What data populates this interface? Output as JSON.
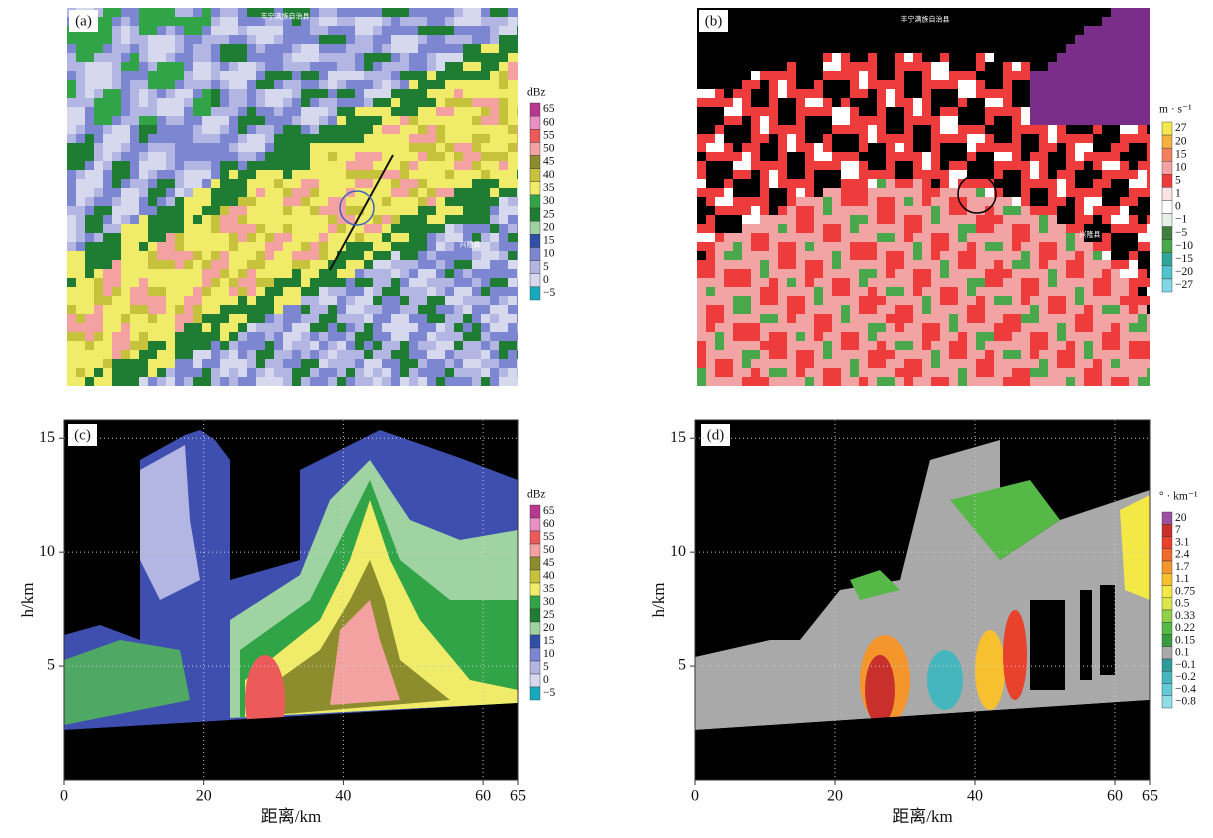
{
  "panels": [
    {
      "label": "(a)",
      "place_names": [
        "丰宁满族自治县",
        "兴隆县"
      ],
      "colorbar": {
        "title": "dBz",
        "labels": [
          "65",
          "60",
          "55",
          "50",
          "45",
          "40",
          "35",
          "30",
          "25",
          "20",
          "15",
          "10",
          "5",
          "0",
          "−5"
        ],
        "colors": [
          "#b8388f",
          "#e98fc4",
          "#ec5a5a",
          "#f4a1a1",
          "#8d8d2e",
          "#c7c23c",
          "#f0ec6a",
          "#32a448",
          "#1f7c33",
          "#9fd3a2",
          "#2f4fa8",
          "#7d86d0",
          "#b3b6e2",
          "#d6d8ee",
          "#16aac0"
        ]
      }
    },
    {
      "label": "(b)",
      "place_names": [
        "丰宁满族自治县",
        "兴隆县"
      ],
      "colorbar": {
        "title": "m · s⁻¹",
        "labels": [
          "27",
          "20",
          "15",
          "10",
          "5",
          "1",
          "0",
          "−1",
          "−5",
          "−10",
          "−15",
          "−20",
          "−27"
        ],
        "colors": [
          "#f3e84f",
          "#f6b13c",
          "#f27f5e",
          "#f2a3a3",
          "#ee3b3b",
          "#fbe3e3",
          "#ffffff",
          "#e4f1e4",
          "#3f7f3c",
          "#4aa84c",
          "#2fa59a",
          "#52c2cc",
          "#7fd7e6"
        ]
      }
    },
    {
      "label": "(c)",
      "x_label": "距离/km",
      "y_label": "h/km",
      "xlim": [
        0,
        65
      ],
      "ylim": [
        0,
        15.8
      ],
      "xticks": [
        0,
        20,
        40,
        60,
        65
      ],
      "yticks": [
        5,
        10,
        15
      ],
      "colorbar": {
        "title": "dBz",
        "labels": [
          "65",
          "60",
          "55",
          "50",
          "45",
          "40",
          "35",
          "30",
          "25",
          "20",
          "15",
          "10",
          "5",
          "0",
          "−5"
        ],
        "colors": [
          "#b8388f",
          "#e98fc4",
          "#ec5a5a",
          "#f4a1a1",
          "#8d8d2e",
          "#c7c23c",
          "#f0ec6a",
          "#32a448",
          "#1f7c33",
          "#9fd3a2",
          "#2f4fa8",
          "#7d86d0",
          "#b3b6e2",
          "#d6d8ee",
          "#16aac0"
        ]
      }
    },
    {
      "label": "(d)",
      "x_label": "距离/km",
      "y_label": "h/km",
      "xlim": [
        0,
        65
      ],
      "ylim": [
        0,
        15.8
      ],
      "xticks": [
        0,
        20,
        40,
        60,
        65
      ],
      "yticks": [
        5,
        10,
        15
      ],
      "colorbar": {
        "title": "° · km⁻¹",
        "labels": [
          "20",
          "7",
          "3.1",
          "2.4",
          "1.7",
          "1.1",
          "0.75",
          "0.5",
          "0.33",
          "0.22",
          "0.15",
          "0.1",
          "−0.1",
          "−0.2",
          "−0.4",
          "−0.8"
        ],
        "colors": [
          "#9a4fa0",
          "#c9302c",
          "#e8412c",
          "#f06a2c",
          "#f4962c",
          "#f7c02f",
          "#f3e846",
          "#d9e74a",
          "#8fcf4a",
          "#56b846",
          "#3a9a3f",
          "#a9a9a9",
          "#2e9a9a",
          "#45b6bd",
          "#63cbd7",
          "#8fdde6"
        ]
      }
    }
  ]
}
